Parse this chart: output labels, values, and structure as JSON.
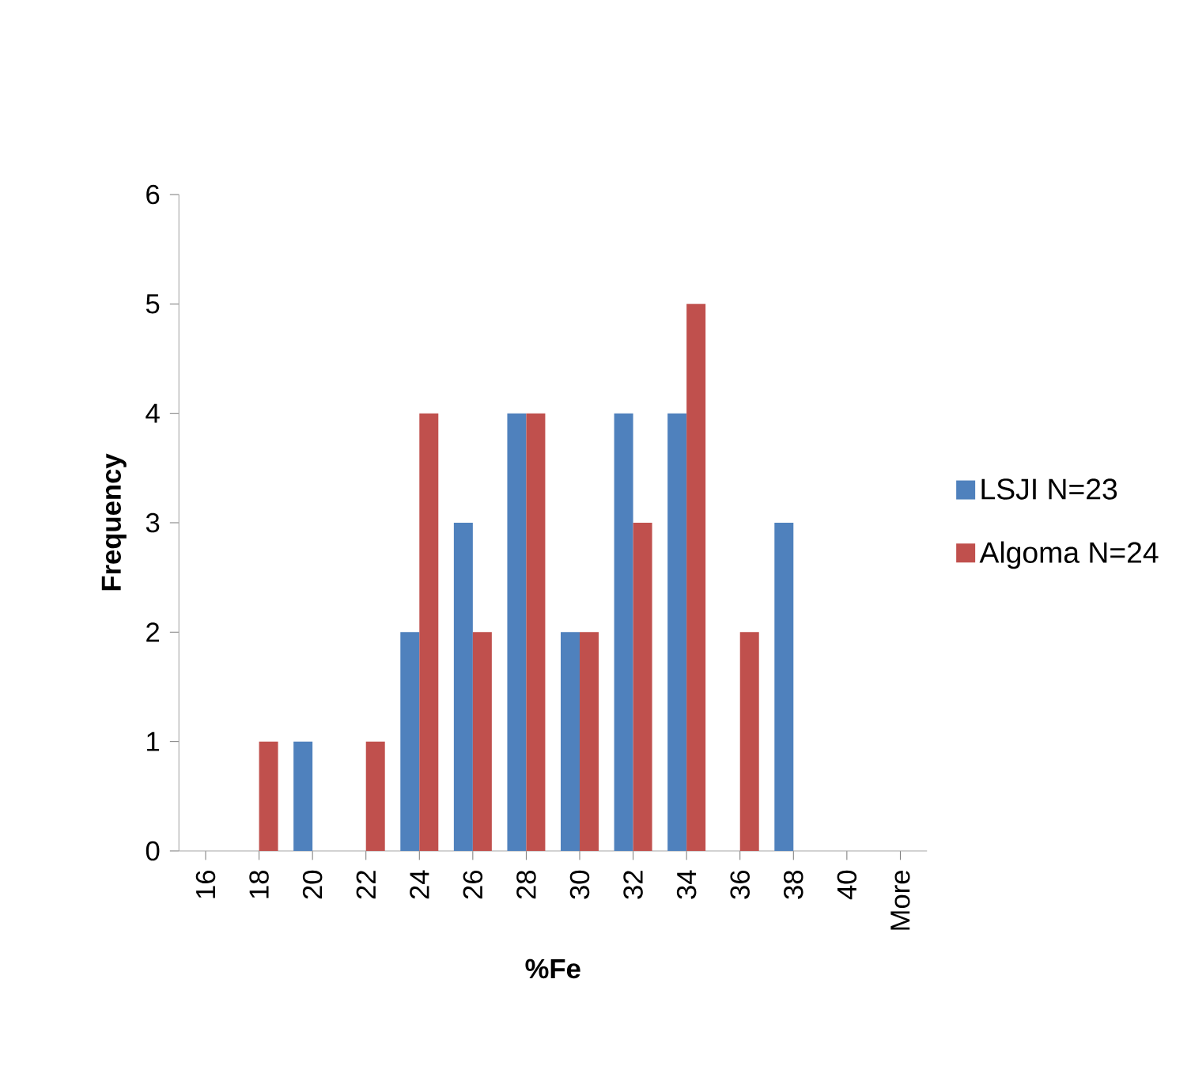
{
  "chart_data": {
    "type": "bar",
    "xlabel": "%Fe",
    "ylabel": "Frequency",
    "categories": [
      "16",
      "18",
      "20",
      "22",
      "24",
      "26",
      "28",
      "30",
      "32",
      "34",
      "36",
      "38",
      "40",
      "More"
    ],
    "series": [
      {
        "name": "LSJI N=23",
        "color": "#4f81bd",
        "values": [
          0,
          0,
          1,
          0,
          2,
          3,
          4,
          2,
          4,
          4,
          0,
          3,
          0,
          0
        ]
      },
      {
        "name": "Algoma N=24",
        "color": "#c0504d",
        "values": [
          0,
          1,
          0,
          1,
          4,
          2,
          4,
          2,
          3,
          5,
          2,
          0,
          0,
          0
        ]
      }
    ],
    "ylim": [
      0,
      6
    ],
    "yticks": [
      0,
      1,
      2,
      3,
      4,
      5,
      6
    ],
    "grid": false,
    "legend": "right"
  }
}
